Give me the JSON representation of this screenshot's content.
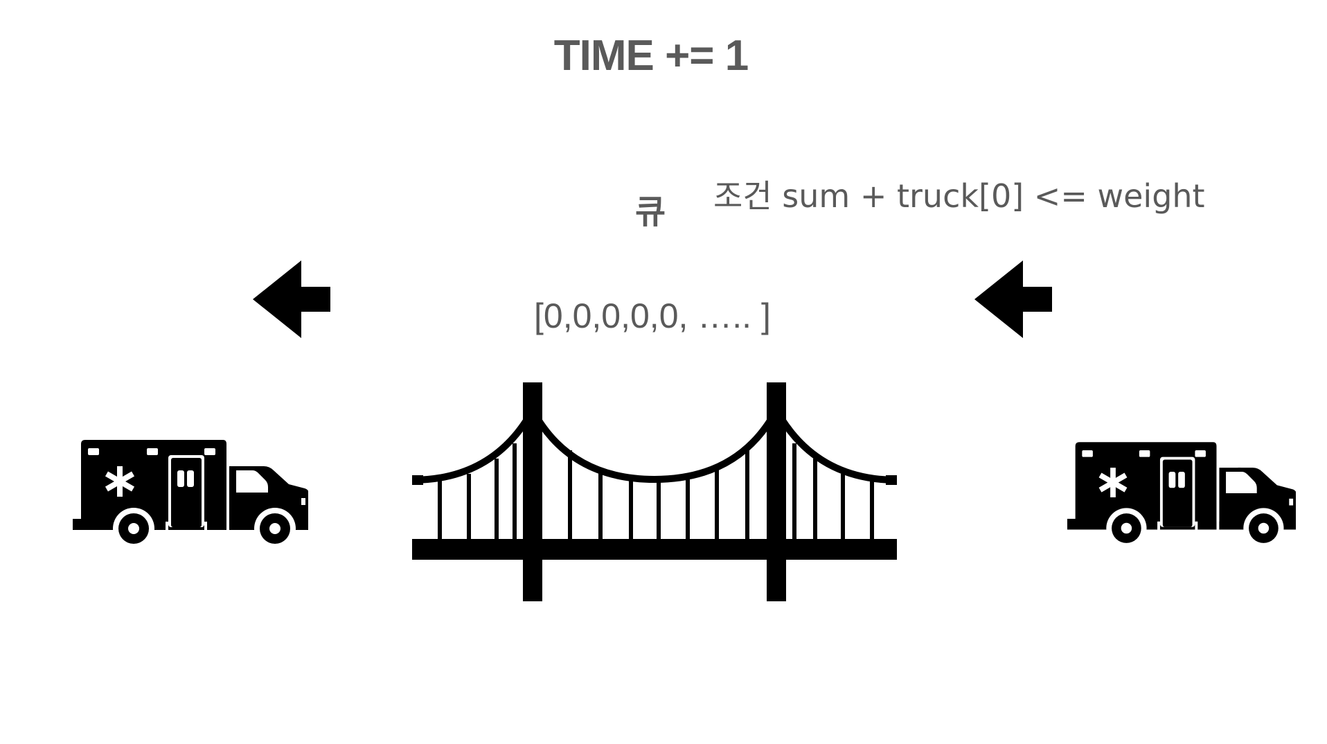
{
  "diagram": {
    "title": "TIME += 1",
    "queue_label": "큐",
    "condition": "조건 sum + truck[0] <= weight",
    "queue_array": "[0,0,0,0,0, ….. ]",
    "text_color": "#5a5a5a",
    "icon_color": "#000000",
    "icons": {
      "left_arrow": "left-arrow-icon",
      "right_arrow": "left-arrow-icon",
      "bridge": "suspension-bridge-icon",
      "left_vehicle": "ambulance-icon",
      "right_vehicle": "ambulance-icon"
    }
  }
}
